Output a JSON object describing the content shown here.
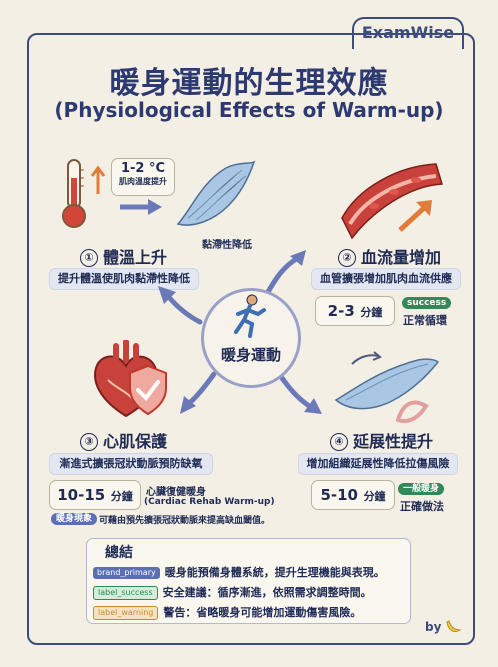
{
  "brand": "ExamWise",
  "title_zh": "暖身運動的生理效應",
  "title_en": "(Physiological Effects of Warm-up)",
  "center_label": "暖身運動",
  "s1": {
    "title": "體溫上升",
    "num": "①",
    "desc": "提升體溫使肌肉黏滯性降低",
    "temp_value": "1-2 °C",
    "temp_caption": "肌肉溫度提升",
    "muscle_caption": "黏滯性降低"
  },
  "s2": {
    "title": "血流量增加",
    "num": "②",
    "desc": "血管擴張增加肌肉血流供應",
    "time_value": "2-3",
    "time_unit": "分鐘",
    "badge": "success",
    "badge_note": "正常循環"
  },
  "s3": {
    "title": "心肌保護",
    "num": "③",
    "desc": "漸進式擴張冠狀動脈預防缺氧",
    "time_value": "10-15",
    "time_unit": "分鐘",
    "note_zh": "心臟復健暖身",
    "note_en": "(Cardiac Rehab Warm-up)",
    "phenomenon_tag": "暖身現象",
    "phenomenon_text": "可藉由預先擴張冠狀動脈來提高缺血閾值。"
  },
  "s4": {
    "title": "延展性提升",
    "num": "④",
    "desc": "增加組織延展性降低拉傷風險",
    "time_value": "5-10",
    "time_unit": "分鐘",
    "badge": "一般暖身",
    "badge_note": "正確做法"
  },
  "summary": {
    "title": "總結",
    "rows": [
      {
        "tag": "brand_primary",
        "text": "暖身能預備身體系統，提升生理機能與表現。"
      },
      {
        "tag": "label_success",
        "text": "安全建議：循序漸進，依照需求調整時間。"
      },
      {
        "tag": "label_warning",
        "text": "警告：省略暖身可能增加運動傷害風險。"
      }
    ]
  },
  "byline": "by",
  "colors": {
    "background": "#f4efe4",
    "navy": "#2d3a72",
    "success": "#2f8a57",
    "primary": "#5b6fb5",
    "warning": "#c88a2a",
    "danger": "#c0392b"
  },
  "icons": [
    "thermometer-icon",
    "muscle-icon",
    "blood-vessel-icon",
    "heart-icon",
    "shield-check-icon",
    "runner-icon",
    "stretch-muscle-icon",
    "resistance-band-icon",
    "banana-icon"
  ]
}
